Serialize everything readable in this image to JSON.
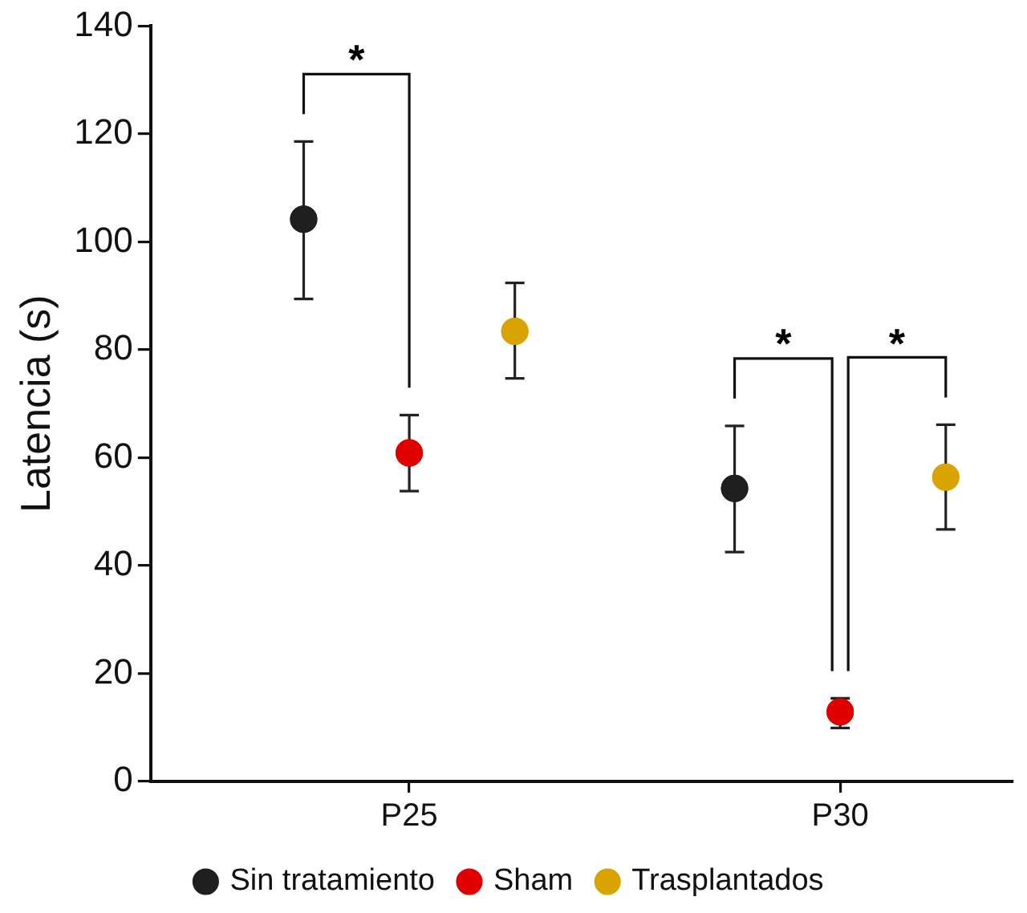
{
  "chart_data": {
    "type": "scatter",
    "ylabel": "Latencia (s)",
    "categories": [
      "P25",
      "P30"
    ],
    "ylim": [
      0,
      140
    ],
    "yticks": [
      0,
      20,
      40,
      60,
      80,
      100,
      120,
      140
    ],
    "grid": false,
    "legend": "bottom",
    "marker": "circle",
    "annotations": [
      "*",
      "*",
      "*"
    ],
    "series": [
      {
        "name": "Sin tratamiento",
        "color": "#1f1f1f",
        "values": [
          104.2,
          54.3
        ],
        "errors": [
          [
            89.4,
            118.6
          ],
          [
            42.5,
            65.9
          ]
        ]
      },
      {
        "name": "Sham",
        "color": "#e00000",
        "values": [
          60.9,
          12.9
        ],
        "errors": [
          [
            53.8,
            67.9
          ],
          [
            9.9,
            15.4
          ]
        ]
      },
      {
        "name": "Trasplantados",
        "color": "#d9a300",
        "values": [
          83.4,
          56.4
        ],
        "errors": [
          [
            74.7,
            92.4
          ],
          [
            46.7,
            66.1
          ]
        ]
      }
    ]
  }
}
